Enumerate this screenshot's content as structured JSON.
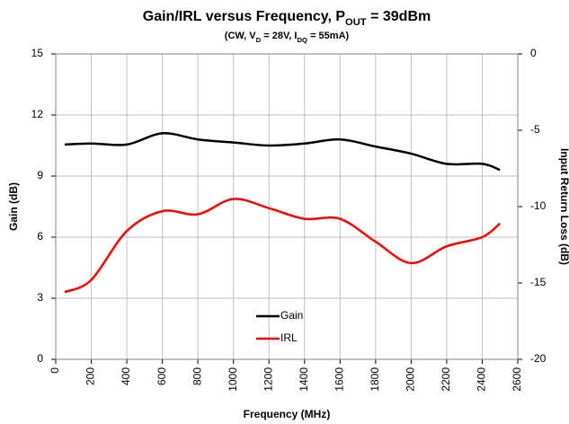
{
  "chart_data": {
    "type": "line",
    "title": [
      "Gain/IRL versus Frequency, P",
      "OUT",
      " = 39dBm"
    ],
    "subtitle": [
      "(CW, V",
      "D",
      " = 28V, I",
      "DQ",
      " = 55mA)"
    ],
    "x_label": "Frequency (MHz)",
    "y_label": "Gain (dB)",
    "y2_label": "Input Return Loss (dB)",
    "x": [
      50,
      200,
      400,
      600,
      800,
      1000,
      1200,
      1400,
      1600,
      1800,
      2000,
      2200,
      2400,
      2500
    ],
    "series": [
      {
        "name": "Gain",
        "color": "#000000",
        "values": [
          10.55,
          10.6,
          10.55,
          11.1,
          10.8,
          10.65,
          10.5,
          10.6,
          10.8,
          10.45,
          10.1,
          9.6,
          9.6,
          9.3
        ]
      },
      {
        "name": "IRL",
        "color": "#ff0000",
        "axis": "y2",
        "values": [
          -15.6,
          -14.8,
          -11.6,
          -10.3,
          -10.5,
          -9.5,
          -10.1,
          -10.8,
          -10.8,
          -12.3,
          -13.7,
          -12.6,
          -12.0,
          -11.1
        ]
      }
    ],
    "xlim": [
      0,
      2600
    ],
    "xticks": [
      0,
      200,
      400,
      600,
      800,
      1000,
      1200,
      1400,
      1600,
      1800,
      2000,
      2200,
      2400,
      2600
    ],
    "ylim": [
      0,
      15
    ],
    "yticks": [
      0,
      3,
      6,
      9,
      12,
      15
    ],
    "y2lim": [
      -20,
      0
    ],
    "y2ticks": [
      -20,
      -15,
      -10,
      -5,
      0
    ],
    "grid": true,
    "legend": "lower-center"
  }
}
